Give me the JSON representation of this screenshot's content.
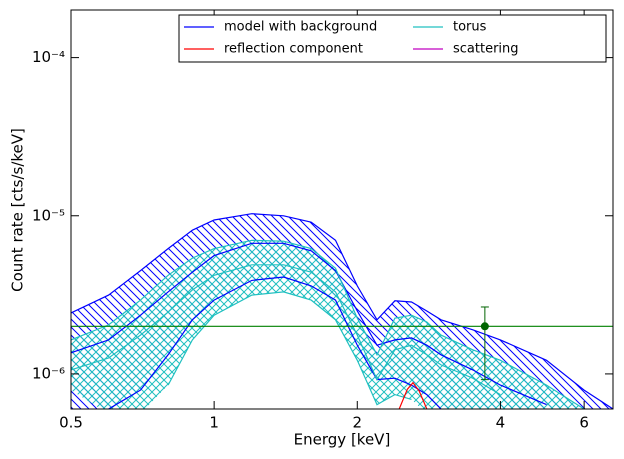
{
  "chart_data": {
    "type": "line",
    "xlabel": "Energy [keV]",
    "ylabel": "Count rate [cts/s/keV]",
    "xscale": "log",
    "yscale": "log",
    "xlim": [
      0.5,
      6.9
    ],
    "ylim": [
      6e-07,
      0.0002
    ],
    "xticks": [
      0.5,
      1,
      2,
      4,
      6
    ],
    "yticks": [
      {
        "value": 1e-06,
        "label": "10⁻⁶"
      },
      {
        "value": 1e-05,
        "label": "10⁻⁵"
      },
      {
        "value": 0.0001,
        "label": "10⁻⁴"
      }
    ],
    "x": [
      0.5,
      0.6,
      0.7,
      0.8,
      0.9,
      1.0,
      1.2,
      1.4,
      1.6,
      1.8,
      2.0,
      2.2,
      2.4,
      2.6,
      2.8,
      3.0,
      3.5,
      4,
      5,
      6,
      6.9
    ],
    "legend_loc": "upper right",
    "series": [
      {
        "name": "model with background",
        "color": "#0000ff",
        "hatch": "diagonal",
        "values": [
          1.36e-06,
          1.64e-06,
          2.35e-06,
          3.3e-06,
          4.4e-06,
          5.6e-06,
          6.7e-06,
          6.7e-06,
          6e-06,
          4.5e-06,
          2.5e-06,
          1.52e-06,
          1.64e-06,
          1.69e-06,
          1.52e-06,
          1.32e-06,
          1.06e-06,
          8.5e-07,
          6.4e-07,
          null,
          null
        ],
        "upper": [
          2.43e-06,
          3.15e-06,
          4.5e-06,
          6.2e-06,
          8.1e-06,
          9.4e-06,
          1.03e-05,
          1e-05,
          9.1e-06,
          7e-06,
          3.6e-06,
          2.2e-06,
          2.9e-06,
          2.85e-06,
          2.5e-06,
          2.2e-06,
          1.9e-06,
          1.64e-06,
          1.22e-06,
          7.9e-07,
          6e-07
        ],
        "lower": [
          null,
          6e-07,
          7.9e-07,
          1.32e-06,
          2.2e-06,
          2.93e-06,
          3.9e-06,
          4.1e-06,
          3.6e-06,
          2.93e-06,
          1.52e-06,
          9.2e-07,
          9.4e-07,
          8.5e-07,
          7.4e-07,
          6e-07,
          null,
          null,
          null,
          null,
          null
        ]
      },
      {
        "name": "torus",
        "color": "#20c0c0",
        "hatch": "cross",
        "values": [
          1.06e-06,
          1.26e-06,
          1.76e-06,
          2.46e-06,
          3.4e-06,
          4.2e-06,
          4.9e-06,
          4.9e-06,
          4.4e-06,
          3.3e-06,
          1.76e-06,
          9.2e-07,
          1.42e-06,
          1.52e-06,
          1.32e-06,
          1.14e-06,
          9.4e-07,
          7.4e-07,
          null,
          null,
          null
        ],
        "upper": [
          1.64e-06,
          2.04e-06,
          2.93e-06,
          4.2e-06,
          5.4e-06,
          6.2e-06,
          7e-06,
          6.9e-06,
          6.2e-06,
          4.66e-06,
          2.25e-06,
          1.32e-06,
          2.25e-06,
          2.35e-06,
          2.13e-06,
          1.76e-06,
          1.42e-06,
          1.22e-06,
          8.5e-07,
          6e-07,
          null
        ],
        "lower": [
          7.9e-07,
          null,
          null,
          8.5e-07,
          1.64e-06,
          2.35e-06,
          3.15e-06,
          3.3e-06,
          2.93e-06,
          2.2e-06,
          1.22e-06,
          6.4e-07,
          7.4e-07,
          6.9e-07,
          null,
          null,
          null,
          null,
          null,
          null,
          null
        ]
      },
      {
        "name": "reflection component",
        "color": "#ff0000",
        "x": [
          2.45,
          2.55,
          2.62,
          2.7,
          2.8
        ],
        "values": [
          6e-07,
          8e-07,
          8.8e-07,
          7.8e-07,
          6e-07
        ]
      },
      {
        "name": "scattering",
        "color": "#c000c0"
      }
    ],
    "hline": {
      "value": 2e-06,
      "color": "#008000"
    },
    "point": {
      "x": 3.71,
      "y": 2e-06,
      "ylow": 9.2e-07,
      "yhigh": 2.65e-06,
      "color": "#006400"
    }
  }
}
